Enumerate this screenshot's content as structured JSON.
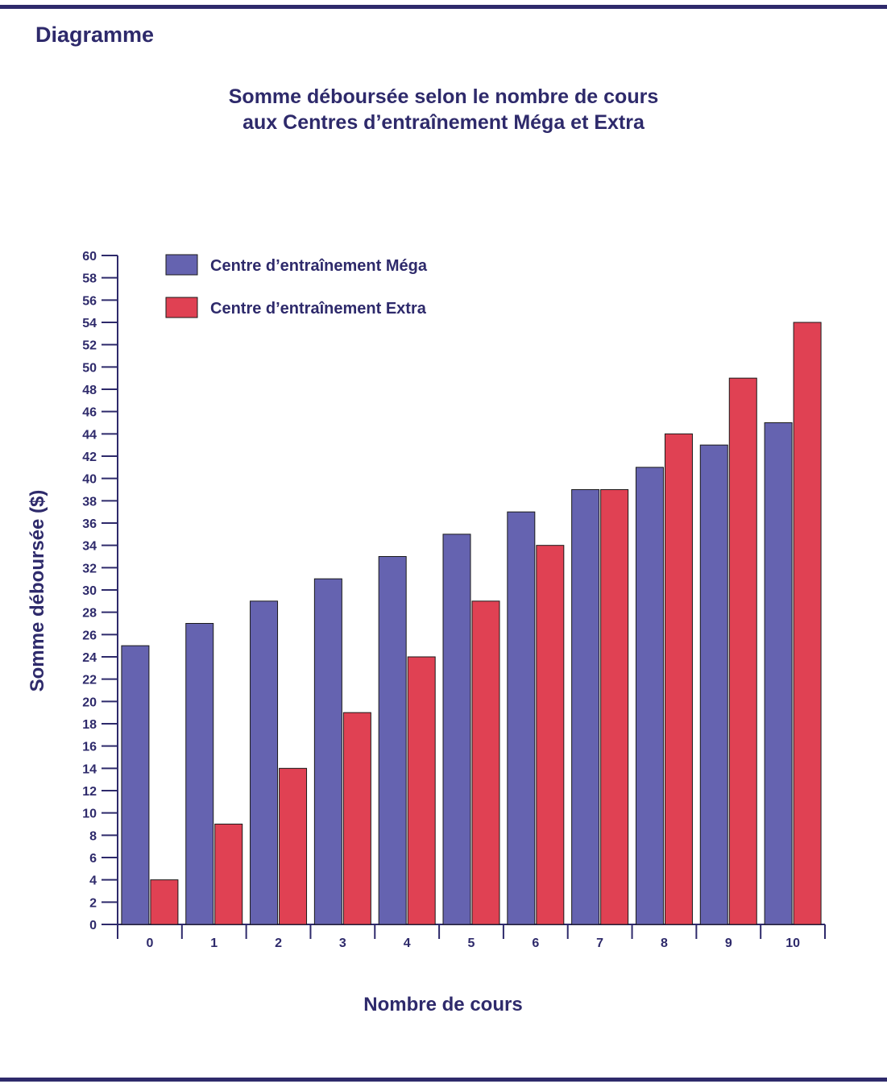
{
  "heading": "Diagramme",
  "chart_data": {
    "type": "bar",
    "title_lines": [
      "Somme déboursée selon le nombre de cours",
      "aux Centres d’entraînement Méga et Extra"
    ],
    "xlabel": "Nombre de cours",
    "ylabel": "Somme déboursée ($)",
    "categories": [
      "0",
      "1",
      "2",
      "3",
      "4",
      "5",
      "6",
      "7",
      "8",
      "9",
      "10"
    ],
    "ylim": [
      0,
      60
    ],
    "ytick_step": 2,
    "legend_position": "top-left",
    "series": [
      {
        "name": "Centre d’entraînement Méga",
        "color": "#6563b0",
        "values": [
          25,
          27,
          29,
          31,
          33,
          35,
          37,
          39,
          41,
          43,
          45
        ]
      },
      {
        "name": "Centre d’entraînement Extra",
        "color": "#e04153",
        "values": [
          4,
          9,
          14,
          19,
          24,
          29,
          34,
          39,
          44,
          49,
          54
        ]
      }
    ]
  }
}
